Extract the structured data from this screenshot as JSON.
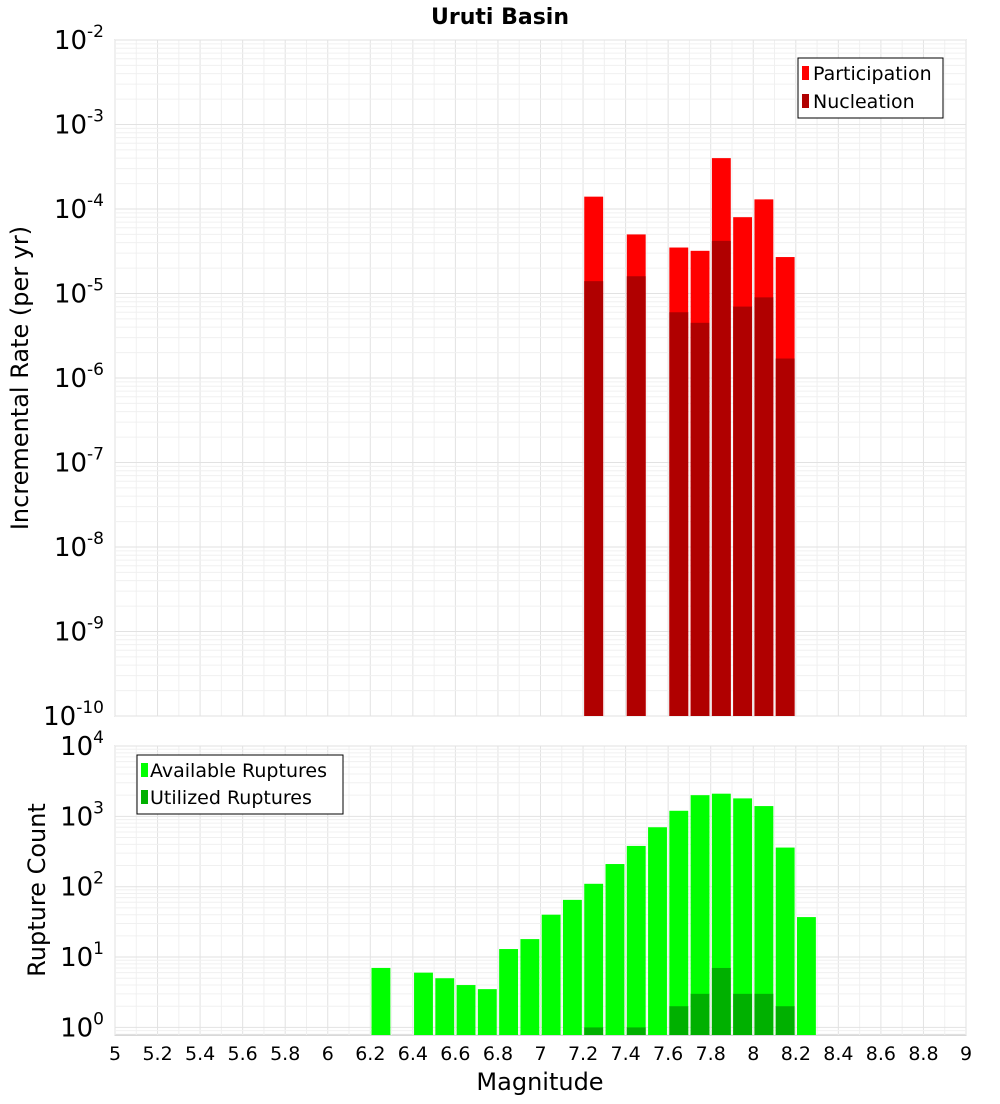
{
  "chart_data": {
    "title": "Uruti Basin",
    "xlabel": "Magnitude",
    "xlim": [
      5,
      9
    ],
    "x_ticks": [
      "5",
      "5.2",
      "5.4",
      "5.6",
      "5.8",
      "6",
      "6.2",
      "6.4",
      "6.6",
      "6.8",
      "7",
      "7.2",
      "7.4",
      "7.6",
      "7.8",
      "8",
      "8.2",
      "8.4",
      "8.6",
      "8.8",
      "9"
    ],
    "bin_width": 0.1,
    "panels": [
      {
        "type": "bar",
        "ylabel": "Incremental Rate (per yr)",
        "yscale": "log",
        "ylim": [
          1e-10,
          0.01
        ],
        "y_tick_exponents": [
          -10,
          -9,
          -8,
          -7,
          -6,
          -5,
          -4,
          -3,
          -2
        ],
        "legend_position": "top-right",
        "series": [
          {
            "name": "Participation",
            "color": "#ff0000",
            "x": [
              7.25,
              7.45,
              7.65,
              7.75,
              7.85,
              7.95,
              8.05,
              8.15
            ],
            "values": [
              0.00014,
              5e-05,
              3.5e-05,
              3.2e-05,
              0.0004,
              8e-05,
              0.00013,
              2.7e-05
            ]
          },
          {
            "name": "Nucleation",
            "color": "#b00000",
            "x": [
              7.25,
              7.45,
              7.65,
              7.75,
              7.85,
              7.95,
              8.05,
              8.15
            ],
            "values": [
              1.4e-05,
              1.6e-05,
              6e-06,
              4.5e-06,
              4.2e-05,
              7e-06,
              9e-06,
              1.7e-06
            ]
          }
        ]
      },
      {
        "type": "bar",
        "ylabel": "Rupture Count",
        "yscale": "log",
        "ylim": [
          0.78,
          10000
        ],
        "y_tick_exponents": [
          0,
          1,
          2,
          3,
          4
        ],
        "legend_position": "top-left",
        "series": [
          {
            "name": "Available Ruptures",
            "color": "#00ff00",
            "x": [
              6.25,
              6.45,
              6.55,
              6.65,
              6.75,
              6.85,
              6.95,
              7.05,
              7.15,
              7.25,
              7.35,
              7.45,
              7.55,
              7.65,
              7.75,
              7.85,
              7.95,
              8.05,
              8.15,
              8.25
            ],
            "values": [
              7,
              6,
              5,
              4,
              3.5,
              13,
              18,
              40,
              65,
              110,
              210,
              380,
              700,
              1200,
              2000,
              2100,
              1800,
              1400,
              360,
              37
            ]
          },
          {
            "name": "Utilized Ruptures",
            "color": "#00b000",
            "x": [
              7.25,
              7.45,
              7.65,
              7.75,
              7.85,
              7.95,
              8.05,
              8.15
            ],
            "values": [
              1,
              1,
              2,
              3,
              7,
              3,
              3,
              2
            ]
          }
        ]
      }
    ]
  }
}
